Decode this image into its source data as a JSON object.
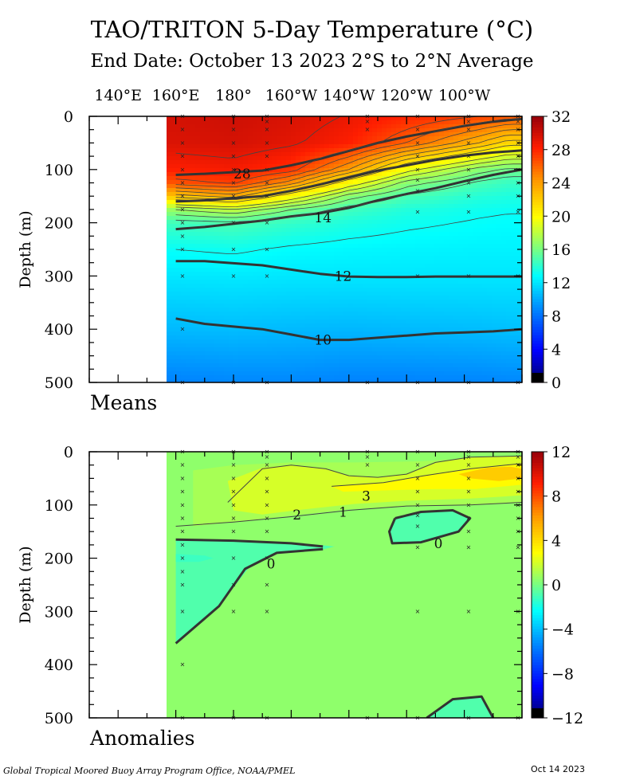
{
  "header": {
    "title": "TAO/TRITON 5-Day Temperature (°C)",
    "subtitle": "End Date: October 13 2023  2°S to 2°N Average"
  },
  "footer": {
    "credit": "Global Tropical Moored Buoy Array Program Office, NOAA/PMEL",
    "date": "Oct 14 2023"
  },
  "chart_data": [
    {
      "type": "heatmap",
      "panel_label": "Means",
      "ylabel": "Depth (m)",
      "x_ticks": [
        "140°E",
        "160°E",
        "180°",
        "160°W",
        "140°W",
        "120°W",
        "100°W"
      ],
      "y_ticks": [
        0,
        100,
        200,
        300,
        400,
        500
      ],
      "ylim": [
        500,
        0
      ],
      "x_range_deg_east": [
        130,
        280
      ],
      "data_start_deg_east": 160,
      "colorbar": {
        "range": [
          0,
          32
        ],
        "ticks": [
          0,
          4,
          8,
          12,
          16,
          20,
          24,
          28,
          32
        ]
      },
      "contour_labels": [
        {
          "text": "28",
          "lon": 183,
          "depth": 108
        },
        {
          "text": "14",
          "lon": 211,
          "depth": 190
        },
        {
          "text": "12",
          "lon": 218,
          "depth": 300
        },
        {
          "text": "10",
          "lon": 211,
          "depth": 420
        }
      ],
      "isotherms": [
        {
          "value": 28,
          "lon": [
            160,
            170,
            190,
            200,
            210,
            220,
            230,
            240,
            250,
            260,
            270,
            280
          ],
          "depth": [
            110,
            108,
            102,
            92,
            80,
            65,
            50,
            38,
            28,
            18,
            10,
            5
          ]
        },
        {
          "value": 20,
          "lon": [
            160,
            170,
            190,
            200,
            210,
            220,
            230,
            240,
            250,
            260,
            270,
            280
          ],
          "depth": [
            160,
            158,
            150,
            140,
            128,
            115,
            102,
            92,
            82,
            74,
            68,
            64
          ]
        },
        {
          "value": 14,
          "lon": [
            160,
            170,
            190,
            200,
            210,
            220,
            230,
            240,
            250,
            260,
            270,
            280
          ],
          "depth": [
            212,
            208,
            196,
            188,
            182,
            172,
            158,
            146,
            135,
            122,
            110,
            100
          ]
        },
        {
          "value": 12,
          "lon": [
            160,
            170,
            190,
            200,
            210,
            220,
            230,
            240,
            250,
            260,
            270,
            280
          ],
          "depth": [
            272,
            272,
            280,
            288,
            296,
            301,
            302,
            302,
            301,
            301,
            301,
            301
          ]
        },
        {
          "value": 10,
          "lon": [
            160,
            170,
            190,
            200,
            210,
            220,
            230,
            240,
            250,
            260,
            270,
            280
          ],
          "depth": [
            380,
            390,
            400,
            410,
            420,
            420,
            416,
            412,
            408,
            406,
            404,
            400
          ]
        }
      ],
      "profiles": [
        {
          "lon": 160,
          "depths": [
            0,
            50,
            100,
            125,
            150,
            175,
            200,
            250,
            300,
            400,
            500
          ],
          "temps": [
            29.8,
            29.5,
            28.2,
            26.5,
            22.5,
            17,
            14.5,
            13,
            12,
            10.5,
            8.6
          ]
        },
        {
          "lon": 180,
          "depths": [
            0,
            50,
            100,
            125,
            150,
            175,
            200,
            250,
            300,
            400,
            500
          ],
          "temps": [
            30.0,
            29.7,
            28.5,
            27.2,
            23.5,
            18,
            14.8,
            13.2,
            12.1,
            10.6,
            8.8
          ]
        },
        {
          "lon": 200,
          "depths": [
            0,
            50,
            100,
            125,
            150,
            175,
            200,
            250,
            300,
            400,
            500
          ],
          "temps": [
            29.6,
            29.2,
            27.5,
            24.5,
            20,
            16,
            14.2,
            12.8,
            12,
            10.5,
            8.8
          ]
        },
        {
          "lon": 220,
          "depths": [
            0,
            50,
            100,
            125,
            150,
            175,
            200,
            250,
            300,
            400,
            500
          ],
          "temps": [
            28.9,
            28.2,
            24,
            20,
            16.5,
            14.5,
            13.6,
            12.6,
            12.0,
            10.4,
            8.6
          ]
        },
        {
          "lon": 240,
          "depths": [
            0,
            50,
            100,
            125,
            150,
            175,
            200,
            250,
            300,
            400,
            500
          ],
          "temps": [
            28.0,
            26.0,
            19.5,
            16.5,
            14.8,
            13.7,
            13.2,
            12.5,
            12.0,
            10.5,
            8.6
          ]
        },
        {
          "lon": 265,
          "depths": [
            0,
            50,
            100,
            125,
            150,
            175,
            200,
            250,
            300,
            400,
            500
          ],
          "temps": [
            27.0,
            23.0,
            16.5,
            14.8,
            13.8,
            13.2,
            12.9,
            12.4,
            12.0,
            10.6,
            8.7
          ]
        },
        {
          "lon": 275,
          "depths": [
            0,
            50,
            100,
            125,
            150,
            175,
            200,
            250,
            300,
            400,
            500
          ],
          "temps": [
            26.5,
            21.5,
            15.8,
            14.3,
            13.6,
            13.1,
            12.8,
            12.4,
            12.0,
            10.7,
            8.8
          ]
        }
      ]
    },
    {
      "type": "heatmap",
      "panel_label": "Anomalies",
      "ylabel": "Depth (m)",
      "y_ticks": [
        0,
        100,
        200,
        300,
        400,
        500
      ],
      "ylim": [
        500,
        0
      ],
      "x_range_deg_east": [
        130,
        280
      ],
      "data_start_deg_east": 160,
      "colorbar": {
        "range": [
          -12,
          12
        ],
        "ticks": [
          -12,
          -8,
          -4,
          0,
          4,
          8,
          12
        ]
      },
      "contour_labels": [
        {
          "text": "3",
          "lon": 226,
          "depth": 83
        },
        {
          "text": "2",
          "lon": 202,
          "depth": 118
        },
        {
          "text": "1",
          "lon": 218,
          "depth": 113
        },
        {
          "text": "0",
          "lon": 251,
          "depth": 172
        },
        {
          "text": "0",
          "lon": 193,
          "depth": 210
        }
      ],
      "background_anomaly": 0.5,
      "regions": [
        {
          "anomaly": 1.0,
          "lon": [
            166,
            180,
            200,
            222,
            245,
            262,
            280,
            280,
            262,
            240,
            220,
            200,
            180,
            166
          ],
          "depth": [
            35,
            25,
            20,
            20,
            18,
            12,
            8,
            95,
            100,
            102,
            108,
            120,
            132,
            140
          ]
        },
        {
          "anomaly": 2.0,
          "lon": [
            178,
            190,
            200,
            212,
            220,
            230,
            240,
            250,
            262,
            280,
            280,
            262,
            240,
            222,
            205,
            190,
            180
          ],
          "depth": [
            55,
            30,
            25,
            32,
            45,
            48,
            42,
            20,
            10,
            8,
            82,
            88,
            92,
            98,
            108,
            118,
            110
          ]
        },
        {
          "anomaly": 3.0,
          "lon": [
            214,
            232,
            246,
            262,
            280,
            280,
            264,
            250,
            236,
            218
          ],
          "depth": [
            65,
            58,
            45,
            32,
            22,
            62,
            70,
            70,
            72,
            75
          ]
        },
        {
          "anomaly": 4.5,
          "lon": [
            258,
            268,
            276,
            280,
            280,
            272,
            262
          ],
          "depth": [
            42,
            30,
            28,
            32,
            50,
            55,
            50
          ]
        },
        {
          "anomaly": -0.8,
          "lon": [
            160,
            180,
            200,
            215,
            210,
            195,
            185,
            175,
            160
          ],
          "depth": [
            165,
            167,
            170,
            178,
            185,
            190,
            220,
            290,
            360
          ]
        },
        {
          "anomaly": -0.8,
          "lon": [
            236,
            245,
            256,
            262,
            258,
            245,
            235,
            234
          ],
          "depth": [
            125,
            113,
            110,
            125,
            150,
            170,
            172,
            150
          ]
        },
        {
          "anomaly": -1.2,
          "lon": [
            160,
            170,
            173,
            168,
            160
          ],
          "depth": [
            192,
            195,
            200,
            207,
            207
          ]
        },
        {
          "anomaly": -0.8,
          "lon": [
            247,
            256,
            266,
            270,
            247
          ],
          "depth": [
            500,
            465,
            460,
            500,
            500
          ]
        }
      ],
      "zero_contours": [
        {
          "lon": [
            160,
            180,
            200,
            211
          ],
          "depth": [
            165,
            167,
            172,
            178
          ]
        },
        {
          "lon": [
            211,
            195,
            184,
            175,
            160
          ],
          "depth": [
            183,
            190,
            220,
            290,
            360
          ]
        },
        {
          "lon": [
            236,
            245,
            256,
            262,
            258,
            245,
            235,
            234,
            236
          ],
          "depth": [
            125,
            113,
            110,
            125,
            150,
            170,
            172,
            150,
            125
          ]
        },
        {
          "lon": [
            247,
            256,
            266,
            270
          ],
          "depth": [
            500,
            465,
            460,
            500
          ]
        }
      ],
      "other_contours": [
        {
          "value": 1,
          "lon": [
            160,
            180,
            200,
            220,
            240,
            262,
            280
          ],
          "depth": [
            140,
            132,
            122,
            110,
            102,
            100,
            95
          ]
        },
        {
          "value": 2,
          "lon": [
            178,
            190,
            200,
            212,
            220,
            230,
            240,
            250,
            262,
            280
          ],
          "depth": [
            95,
            32,
            25,
            32,
            45,
            48,
            42,
            20,
            10,
            8
          ]
        },
        {
          "value": 3,
          "lon": [
            214,
            232,
            246,
            262,
            280
          ],
          "depth": [
            65,
            58,
            45,
            32,
            22
          ]
        }
      ]
    }
  ]
}
